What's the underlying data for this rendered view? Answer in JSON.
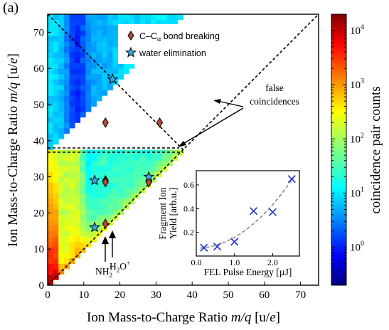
{
  "panel_label": "(a)",
  "chart_data": [
    {
      "type": "heatmap",
      "xlabel": "Ion Mass-to-Charge Ratio m/q [u/e]",
      "ylabel": "Ion Mass-to-Charge Ratio m/q [u/e]",
      "xlim": [
        0,
        75
      ],
      "ylim": [
        0,
        75
      ],
      "xticks": [
        "0",
        "10",
        "20",
        "30",
        "40",
        "50",
        "60",
        "70"
      ],
      "yticks": [
        "0",
        "10",
        "20",
        "30",
        "40",
        "50",
        "60",
        "70"
      ],
      "colorbar": {
        "label": "coincidence pair counts",
        "scale": "log",
        "range": [
          0.2,
          20000
        ],
        "tick_labels": [
          {
            "base": "10",
            "exp": "0",
            "value": 1
          },
          {
            "base": "10",
            "exp": "1",
            "value": 10
          },
          {
            "base": "10",
            "exp": "2",
            "value": 100
          },
          {
            "base": "10",
            "exp": "3",
            "value": 1000
          },
          {
            "base": "10",
            "exp": "4",
            "value": 10000
          }
        ]
      },
      "series": [
        {
          "name": "C–Cα bond breaking",
          "marker": "diamond",
          "color": "#b5483a",
          "points": [
            [
              16,
              45
            ],
            [
              31,
              45
            ],
            [
              16,
              29
            ],
            [
              16,
              28.5
            ],
            [
              28,
              28.5
            ],
            [
              16,
              17
            ]
          ]
        },
        {
          "name": "water elimination",
          "marker": "star",
          "color": "#3aa7e0",
          "points": [
            [
              18,
              57
            ],
            [
              13,
              29
            ],
            [
              28,
              30
            ],
            [
              13,
              16
            ]
          ]
        }
      ],
      "annotations": {
        "false_line1": "false",
        "false_line2": "coincidences",
        "nh2_base": "NH",
        "nh2_sub": "2",
        "nh2_sup": "+",
        "h2o_base": "H",
        "h2o_sub": "2",
        "h2o_rest": "O",
        "h2o_sup": "+"
      },
      "legend": {
        "position": "top-right"
      }
    },
    {
      "type": "scatter",
      "xlabel": "FEL Pulse Energy [µJ]",
      "ylabel_line1": "Fragment Ion",
      "ylabel_line2": "Yield [arb.u.]",
      "xlim": [
        0,
        2.7
      ],
      "ylim": [
        0,
        0.72
      ],
      "xticks": [
        "0.0",
        "1.0",
        "2.0"
      ],
      "yticks": [
        "0.2",
        "0.4",
        "0.6"
      ],
      "x": [
        0.2,
        0.55,
        1.0,
        1.5,
        2.0,
        2.5
      ],
      "y": [
        0.07,
        0.08,
        0.12,
        0.38,
        0.37,
        0.65
      ],
      "fit": "quadratic",
      "marker_color": "#1f2fd6",
      "fit_color": "#8a8a8a"
    }
  ]
}
